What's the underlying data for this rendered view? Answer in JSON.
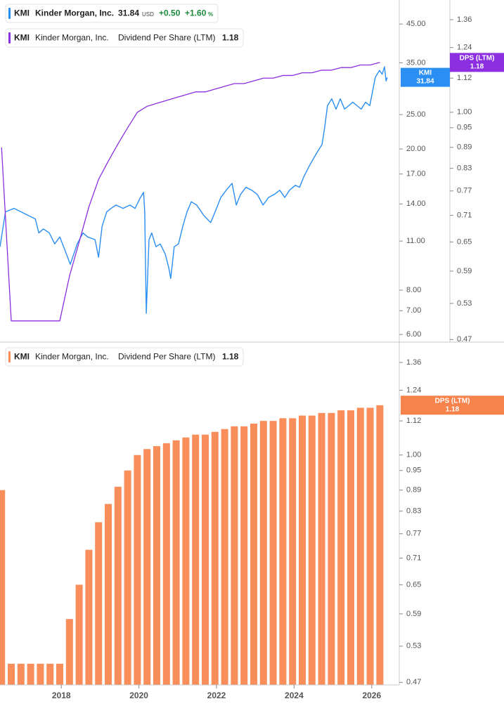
{
  "chart_data": [
    {
      "type": "line",
      "log": true,
      "legend": [
        {
          "ticker": "KMI",
          "company": "Kinder Morgan, Inc.",
          "price": 31.84,
          "currency": "USD",
          "change": "+0.50",
          "change_pct": "+1.60",
          "pct_unit": "%"
        },
        {
          "ticker": "KMI",
          "company": "Kinder Morgan, Inc.",
          "name": "Dividend Per Share (LTM)",
          "value": 1.18
        }
      ],
      "xlim": [
        2016.42,
        2026.71
      ],
      "ylim": [
        5.71,
        52.6
      ],
      "yticks": [
        {
          "value": 45,
          "label": "45.00"
        },
        {
          "value": 35,
          "label": "35.00"
        },
        {
          "value": 25,
          "label": "25.00"
        },
        {
          "value": 20,
          "label": "20.00"
        },
        {
          "value": 17,
          "label": "17.00"
        },
        {
          "value": 14,
          "label": "14.00"
        },
        {
          "value": 11,
          "label": "11.00"
        },
        {
          "value": 8,
          "label": "8.00"
        },
        {
          "value": 7,
          "label": "7.00"
        },
        {
          "value": 6,
          "label": "6.00"
        }
      ],
      "y2lim": [
        0.466,
        1.452
      ],
      "y2ticks": [
        1.36,
        1.24,
        1.12,
        {
          "value": 1,
          "label": "1.00"
        },
        0.95,
        0.89,
        0.83,
        0.77,
        0.71,
        0.65,
        0.59,
        0.53,
        0.47
      ],
      "series": [
        {
          "name": "KMI",
          "color": "#2a8ef2",
          "axis": "y",
          "last": 31.84,
          "x": [
            2016.42,
            2016.56,
            2016.78,
            2016.96,
            2017.14,
            2017.33,
            2017.42,
            2017.54,
            2017.69,
            2017.83,
            2017.96,
            2018.09,
            2018.23,
            2018.32,
            2018.41,
            2018.56,
            2018.68,
            2018.87,
            2018.96,
            2019.05,
            2019.17,
            2019.28,
            2019.41,
            2019.59,
            2019.77,
            2019.9,
            2020.04,
            2020.12,
            2020.15,
            2020.19,
            2020.26,
            2020.33,
            2020.44,
            2020.55,
            2020.68,
            2020.77,
            2020.82,
            2020.91,
            2021.02,
            2021.13,
            2021.24,
            2021.35,
            2021.49,
            2021.67,
            2021.85,
            2022.0,
            2022.11,
            2022.25,
            2022.4,
            2022.51,
            2022.62,
            2022.76,
            2022.91,
            2023.05,
            2023.2,
            2023.34,
            2023.49,
            2023.63,
            2023.76,
            2023.88,
            2024.03,
            2024.14,
            2024.25,
            2024.39,
            2024.5,
            2024.61,
            2024.72,
            2024.79,
            2024.86,
            2024.97,
            2025.08,
            2025.19,
            2025.3,
            2025.41,
            2025.51,
            2025.62,
            2025.73,
            2025.84,
            2025.95,
            2026.02,
            2026.09,
            2026.2,
            2026.27,
            2026.33,
            2026.37,
            2026.4
          ],
          "values": [
            10.6,
            13.3,
            13.6,
            13.3,
            13.0,
            12.7,
            11.6,
            11.9,
            11.6,
            10.8,
            11.3,
            10.4,
            9.46,
            10.1,
            10.8,
            11.6,
            11.3,
            11.1,
            9.9,
            12.1,
            13.3,
            13.6,
            13.9,
            13.6,
            13.9,
            13.6,
            14.6,
            15.1,
            13.3,
            6.88,
            11.1,
            11.6,
            10.6,
            10.8,
            10.1,
            9.25,
            8.63,
            10.6,
            10.8,
            12.1,
            13.3,
            14.2,
            13.9,
            13.0,
            12.4,
            13.6,
            14.6,
            15.3,
            16.0,
            13.9,
            14.9,
            15.6,
            15.3,
            14.9,
            13.9,
            14.6,
            14.9,
            15.3,
            14.6,
            15.3,
            15.8,
            15.6,
            16.7,
            17.9,
            18.8,
            19.7,
            20.6,
            23.1,
            26.5,
            27.7,
            25.9,
            27.7,
            25.9,
            26.5,
            27.1,
            26.5,
            25.9,
            27.1,
            26.5,
            29.0,
            31.8,
            33.3,
            32.5,
            34.1,
            31.1,
            31.84
          ]
        },
        {
          "name": "DPS (LTM)",
          "color": "#8b2fe0",
          "axis": "y2",
          "last": 1.18,
          "x": [
            2016.46,
            2016.71,
            2016.96,
            2017.21,
            2017.46,
            2017.71,
            2017.96,
            2018.21,
            2018.46,
            2018.71,
            2018.96,
            2019.21,
            2019.46,
            2019.71,
            2019.96,
            2020.21,
            2020.46,
            2020.71,
            2020.96,
            2021.21,
            2021.46,
            2021.71,
            2021.96,
            2022.21,
            2022.46,
            2022.71,
            2022.96,
            2023.21,
            2023.46,
            2023.71,
            2023.96,
            2024.21,
            2024.46,
            2024.71,
            2024.96,
            2025.21,
            2025.46,
            2025.71,
            2025.96,
            2026.21
          ],
          "values": [
            0.89,
            0.5,
            0.5,
            0.5,
            0.5,
            0.5,
            0.5,
            0.58,
            0.65,
            0.73,
            0.8,
            0.85,
            0.9,
            0.95,
            1.0,
            1.02,
            1.03,
            1.04,
            1.05,
            1.06,
            1.07,
            1.07,
            1.08,
            1.09,
            1.1,
            1.1,
            1.11,
            1.12,
            1.12,
            1.13,
            1.13,
            1.14,
            1.14,
            1.15,
            1.15,
            1.16,
            1.16,
            1.17,
            1.17,
            1.18
          ]
        }
      ]
    },
    {
      "type": "bar",
      "log": true,
      "legend": {
        "ticker": "KMI",
        "company": "Kinder Morgan, Inc.",
        "name": "Dividend Per Share (LTM)",
        "value": 1.18
      },
      "xlim": [
        2016.42,
        2026.71
      ],
      "xticks": [
        2018,
        2020,
        2022,
        2024,
        2026
      ],
      "ylim": [
        0.466,
        1.455
      ],
      "yticks": [
        1.36,
        1.24,
        1.12,
        {
          "value": 1,
          "label": "1.00"
        },
        0.95,
        0.89,
        0.83,
        0.77,
        0.71,
        0.65,
        0.59,
        0.53,
        0.47
      ],
      "series": [
        {
          "name": "DPS (LTM)",
          "color": "#f98e5a",
          "last": 1.18,
          "x": [
            2016.46,
            2016.71,
            2016.96,
            2017.21,
            2017.46,
            2017.71,
            2017.96,
            2018.21,
            2018.46,
            2018.71,
            2018.96,
            2019.21,
            2019.46,
            2019.71,
            2019.96,
            2020.21,
            2020.46,
            2020.71,
            2020.96,
            2021.21,
            2021.46,
            2021.71,
            2021.96,
            2022.21,
            2022.46,
            2022.71,
            2022.96,
            2023.21,
            2023.46,
            2023.71,
            2023.96,
            2024.21,
            2024.46,
            2024.71,
            2024.96,
            2025.21,
            2025.46,
            2025.71,
            2025.96,
            2026.21
          ],
          "values": [
            0.89,
            0.5,
            0.5,
            0.5,
            0.5,
            0.5,
            0.5,
            0.58,
            0.65,
            0.73,
            0.8,
            0.85,
            0.9,
            0.95,
            1.0,
            1.02,
            1.03,
            1.04,
            1.05,
            1.06,
            1.07,
            1.07,
            1.08,
            1.09,
            1.1,
            1.1,
            1.11,
            1.12,
            1.12,
            1.13,
            1.13,
            1.14,
            1.14,
            1.15,
            1.15,
            1.16,
            1.16,
            1.17,
            1.17,
            1.18
          ]
        }
      ]
    }
  ]
}
